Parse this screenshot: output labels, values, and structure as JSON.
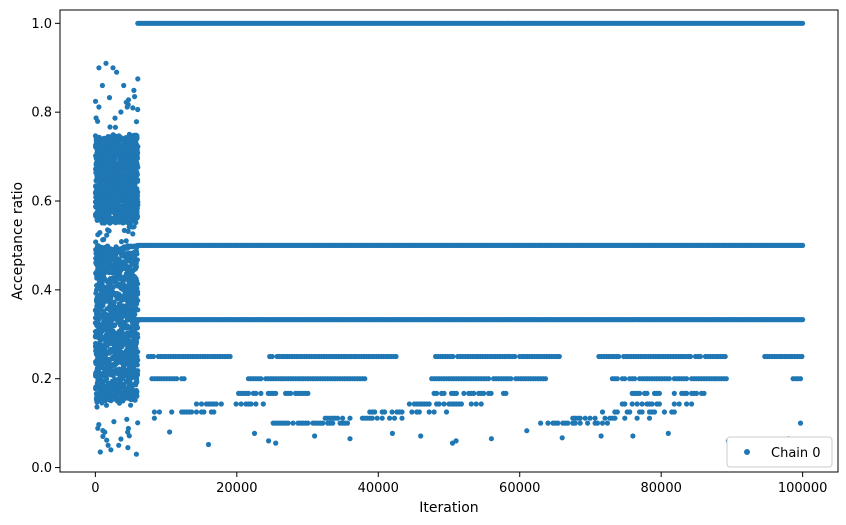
{
  "chart_data": {
    "type": "scatter",
    "title": "",
    "xlabel": "Iteration",
    "ylabel": "Acceptance ratio",
    "xlim": [
      -5000,
      105000
    ],
    "ylim": [
      -0.01,
      1.03
    ],
    "xticks": [
      0,
      20000,
      40000,
      60000,
      80000,
      100000
    ],
    "xtick_labels": [
      "0",
      "20000",
      "40000",
      "60000",
      "80000",
      "100000"
    ],
    "yticks": [
      0.0,
      0.2,
      0.4,
      0.6,
      0.8,
      1.0
    ],
    "ytick_labels": [
      "0.0",
      "0.2",
      "0.4",
      "0.6",
      "0.8",
      "1.0"
    ],
    "grid": false,
    "legend": {
      "position": "lower-right",
      "entries": [
        {
          "name": "Chain 0",
          "color": "#1f77b4",
          "marker": "dot"
        }
      ]
    },
    "series": [
      {
        "name": "Chain 0",
        "color": "#1f77b4",
        "burn_in_region": {
          "x_range": [
            0,
            6000
          ],
          "dense_y_ranges": [
            [
              0.55,
              0.75
            ],
            [
              0.15,
              0.5
            ]
          ],
          "outlier_points": [
            [
              500,
              0.9
            ],
            [
              1500,
              0.91
            ],
            [
              2500,
              0.9
            ],
            [
              3000,
              0.89
            ],
            [
              1000,
              0.86
            ],
            [
              4000,
              0.86
            ],
            [
              6000,
              0.875
            ],
            [
              700,
              0.035
            ],
            [
              2200,
              0.04
            ],
            [
              5800,
              0.03
            ],
            [
              3300,
              0.05
            ],
            [
              1800,
              0.05
            ],
            [
              4600,
              0.045
            ]
          ]
        },
        "horizontal_bands": [
          {
            "y": 1.0,
            "x_range": [
              6000,
              100000
            ]
          },
          {
            "y": 0.5,
            "x_range": [
              6000,
              100000
            ]
          },
          {
            "y": 0.333,
            "x_range": [
              6000,
              100000
            ]
          },
          {
            "y": 0.25,
            "x_range": [
              7500,
              100000
            ]
          },
          {
            "y": 0.2,
            "x_range": [
              8000,
              100000
            ]
          },
          {
            "y": 0.167,
            "x_range": [
              8000,
              100000
            ]
          },
          {
            "y": 0.143,
            "x_range": [
              8000,
              100000
            ]
          },
          {
            "y": 0.125,
            "x_range": [
              8000,
              100000
            ]
          },
          {
            "y": 0.111,
            "x_range": [
              8000,
              100000
            ]
          },
          {
            "y": 0.1,
            "x_range": [
              8000,
              100000
            ]
          }
        ],
        "sparse_low_values": [
          [
            16000,
            0.052
          ],
          [
            25500,
            0.055
          ],
          [
            24500,
            0.06
          ],
          [
            36000,
            0.065
          ],
          [
            50500,
            0.055
          ],
          [
            51000,
            0.06
          ],
          [
            56000,
            0.065
          ],
          [
            61000,
            0.083
          ],
          [
            66000,
            0.067
          ],
          [
            89500,
            0.06
          ],
          [
            97000,
            0.06
          ],
          [
            98000,
            0.065
          ],
          [
            31000,
            0.071
          ],
          [
            46000,
            0.071
          ],
          [
            71500,
            0.071
          ],
          [
            76000,
            0.071
          ],
          [
            22500,
            0.077
          ],
          [
            42000,
            0.077
          ],
          [
            81000,
            0.077
          ],
          [
            10500,
            0.08
          ]
        ]
      }
    ]
  }
}
